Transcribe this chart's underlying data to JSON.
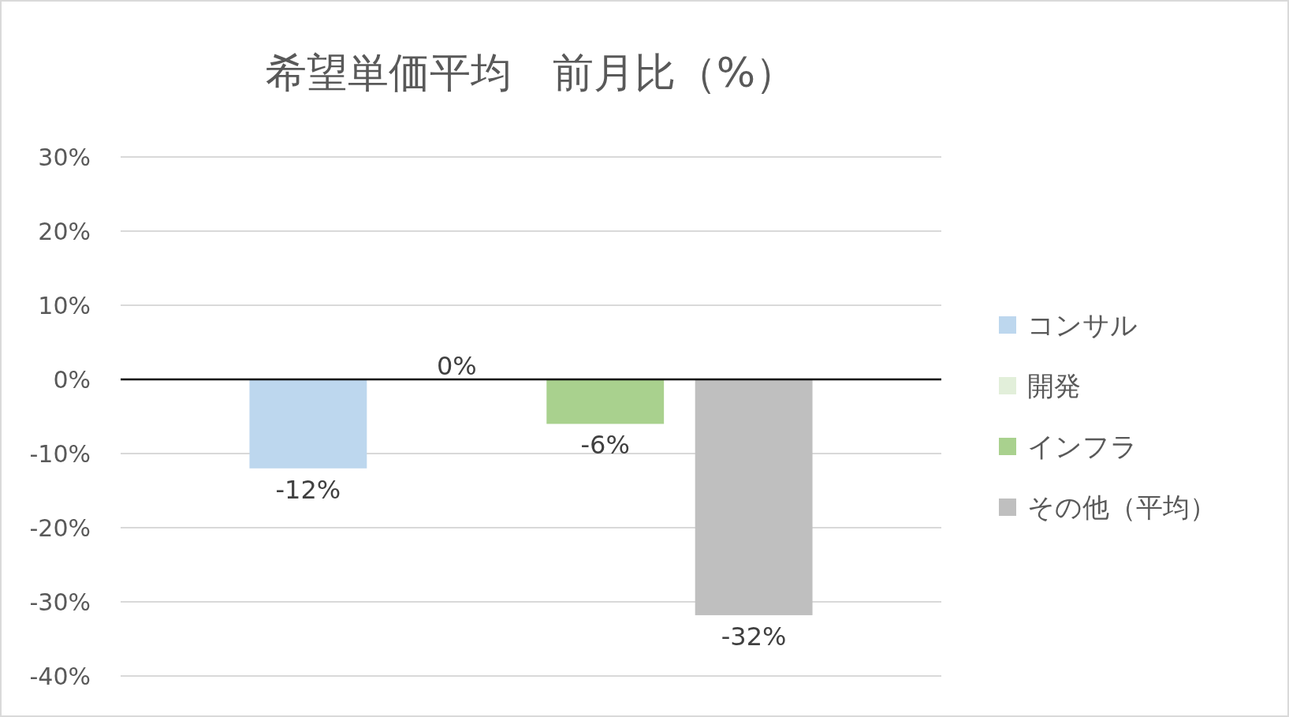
{
  "chart_data": {
    "type": "bar",
    "title": "希望単価平均　前月比（%）",
    "categories": [
      null
    ],
    "series": [
      {
        "name": "コンサル",
        "color": "#bdd7ee",
        "values": [
          -12
        ],
        "value_labels": [
          "-12%"
        ]
      },
      {
        "name": "開発",
        "color": "#e2efda",
        "values": [
          0
        ],
        "value_labels": [
          "0%"
        ]
      },
      {
        "name": "インフラ",
        "color": "#a9d18e",
        "values": [
          -6
        ],
        "value_labels": [
          "-6%"
        ]
      },
      {
        "name": "その他（平均）",
        "color": "#bfbfbf",
        "values": [
          -31.8
        ],
        "value_labels": [
          "-32%"
        ]
      }
    ],
    "ylim": [
      -40,
      30
    ],
    "yticks": [
      {
        "value": -40,
        "label": "-40%"
      },
      {
        "value": -30,
        "label": "-30%"
      },
      {
        "value": -20,
        "label": "-20%"
      },
      {
        "value": -10,
        "label": "-10%"
      },
      {
        "value": 0,
        "label": "0%"
      },
      {
        "value": 10,
        "label": "10%"
      },
      {
        "value": 20,
        "label": "20%"
      },
      {
        "value": 30,
        "label": "30%"
      }
    ],
    "grid": "y",
    "legend": "right"
  }
}
